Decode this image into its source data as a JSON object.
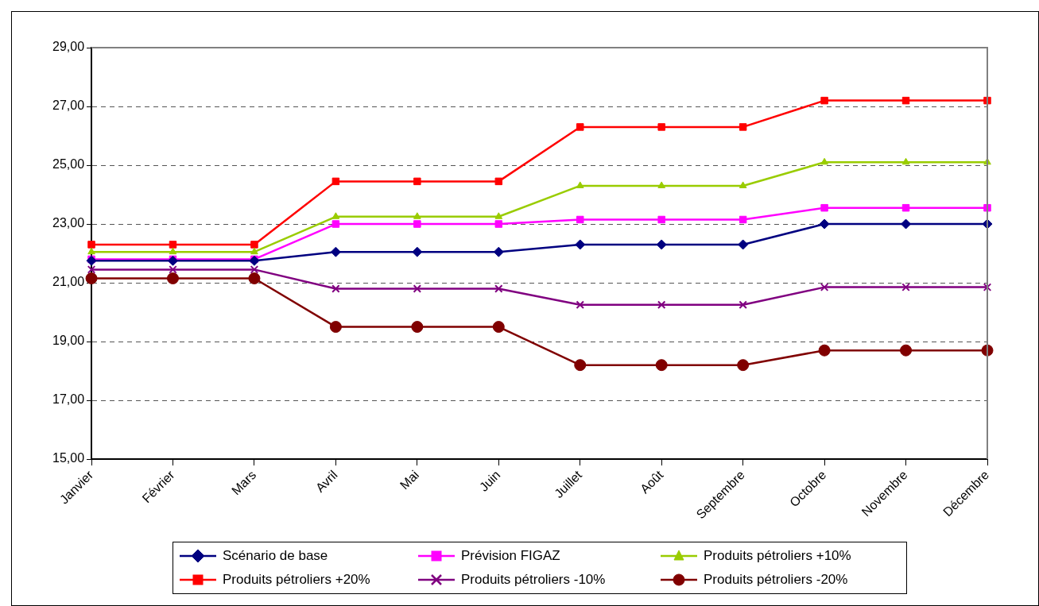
{
  "chart_data": {
    "type": "line",
    "categories": [
      "Janvier",
      "Février",
      "Mars",
      "Avril",
      "Mai",
      "Juin",
      "Juillet",
      "Août",
      "Septembre",
      "Octobre",
      "Novembre",
      "Décembre"
    ],
    "ylim": [
      15,
      29
    ],
    "yticks": [
      {
        "value": 15,
        "label": "15,00"
      },
      {
        "value": 17,
        "label": "17,00"
      },
      {
        "value": 19,
        "label": "19,00"
      },
      {
        "value": 21,
        "label": "21,00"
      },
      {
        "value": 23,
        "label": "23,00"
      },
      {
        "value": 25,
        "label": "25,00"
      },
      {
        "value": 27,
        "label": "27,00"
      },
      {
        "value": 29,
        "label": "29,00"
      }
    ],
    "grid": "y",
    "legend": "bottom",
    "line_style": "solid",
    "series": [
      {
        "name": "Scénario de base",
        "color": "#000080",
        "marker": "diamond",
        "values": [
          21.75,
          21.75,
          21.75,
          22.05,
          22.05,
          22.05,
          22.3,
          22.3,
          22.3,
          23.0,
          23.0,
          23.0
        ]
      },
      {
        "name": "Prévision FIGAZ",
        "color": "#ff00ff",
        "marker": "square",
        "values": [
          21.8,
          21.8,
          21.8,
          23.0,
          23.0,
          23.0,
          23.15,
          23.15,
          23.15,
          23.55,
          23.55,
          23.55
        ]
      },
      {
        "name": "Produits pétroliers +10%",
        "color": "#99cc00",
        "marker": "triangle",
        "values": [
          22.05,
          22.05,
          22.05,
          23.25,
          23.25,
          23.25,
          24.3,
          24.3,
          24.3,
          25.1,
          25.1,
          25.1
        ]
      },
      {
        "name": "Produits pétroliers +20%",
        "color": "#ff0000",
        "marker": "square",
        "values": [
          22.3,
          22.3,
          22.3,
          24.45,
          24.45,
          24.45,
          26.3,
          26.3,
          26.3,
          27.2,
          27.2,
          27.2
        ]
      },
      {
        "name": "Produits pétroliers -10%",
        "color": "#800080",
        "marker": "cross",
        "values": [
          21.45,
          21.45,
          21.45,
          20.8,
          20.8,
          20.8,
          20.25,
          20.25,
          20.25,
          20.85,
          20.85,
          20.85
        ]
      },
      {
        "name": "Produits pétroliers -20%",
        "color": "#800000",
        "marker": "circle",
        "values": [
          21.15,
          21.15,
          21.15,
          19.5,
          19.5,
          19.5,
          18.2,
          18.2,
          18.2,
          18.7,
          18.7,
          18.7
        ]
      }
    ]
  }
}
